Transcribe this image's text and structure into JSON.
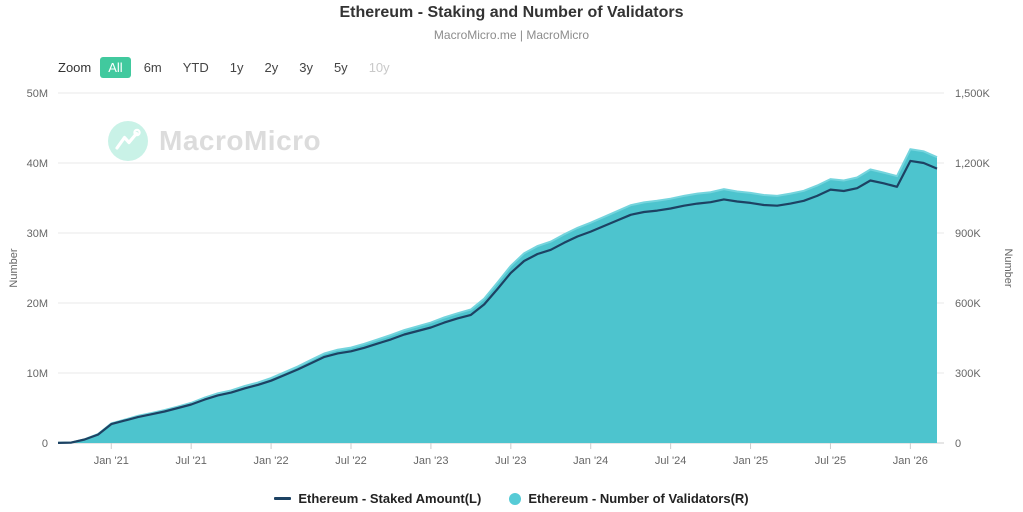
{
  "header": {
    "title": "Ethereum - Staking and Number of Validators",
    "subtitle": "MacroMicro.me | MacroMicro"
  },
  "toolbar": {
    "zoom_label": "Zoom",
    "ranges": [
      {
        "label": "All",
        "state": "active"
      },
      {
        "label": "6m",
        "state": "normal"
      },
      {
        "label": "YTD",
        "state": "normal"
      },
      {
        "label": "1y",
        "state": "normal"
      },
      {
        "label": "2y",
        "state": "normal"
      },
      {
        "label": "3y",
        "state": "normal"
      },
      {
        "label": "5y",
        "state": "normal"
      },
      {
        "label": "10y",
        "state": "disabled"
      }
    ],
    "active_color": "#41c99e"
  },
  "watermark": {
    "text": "MacroMicro",
    "logo": "macromicro-logo",
    "logo_bg": "#c9f2e7",
    "text_color": "#dcdcdc"
  },
  "legend": {
    "items": [
      {
        "label": "Ethereum - Staked Amount(L)",
        "marker": "line",
        "color": "#1d4263"
      },
      {
        "label": "Ethereum - Number of Validators(R)",
        "marker": "circle",
        "color": "#56cbd6"
      }
    ]
  },
  "chart_data": {
    "type": "area",
    "title": "Ethereum - Staking and Number of Validators",
    "x": [
      "2020-09",
      "2020-10",
      "2020-11",
      "2020-12",
      "2021-01",
      "2021-02",
      "2021-03",
      "2021-04",
      "2021-05",
      "2021-06",
      "2021-07",
      "2021-08",
      "2021-09",
      "2021-10",
      "2021-11",
      "2021-12",
      "2022-01",
      "2022-02",
      "2022-03",
      "2022-04",
      "2022-05",
      "2022-06",
      "2022-07",
      "2022-08",
      "2022-09",
      "2022-10",
      "2022-11",
      "2022-12",
      "2023-01",
      "2023-02",
      "2023-03",
      "2023-04",
      "2023-05",
      "2023-06",
      "2023-07",
      "2023-08",
      "2023-09",
      "2023-10",
      "2023-11",
      "2023-12",
      "2024-01",
      "2024-02",
      "2024-03",
      "2024-04",
      "2024-05",
      "2024-06",
      "2024-07",
      "2024-08",
      "2024-09",
      "2024-10",
      "2024-11",
      "2024-12",
      "2025-01",
      "2025-02",
      "2025-03",
      "2025-04",
      "2025-05",
      "2025-06",
      "2025-07",
      "2025-08",
      "2025-09",
      "2025-10",
      "2025-11",
      "2025-12",
      "2026-01",
      "2026-02",
      "2026-03"
    ],
    "x_ticks": [
      {
        "label": "Jan '21",
        "month": "2021-01"
      },
      {
        "label": "Jul '21",
        "month": "2021-07"
      },
      {
        "label": "Jan '22",
        "month": "2022-01"
      },
      {
        "label": "Jul '22",
        "month": "2022-07"
      },
      {
        "label": "Jan '23",
        "month": "2023-01"
      },
      {
        "label": "Jul '23",
        "month": "2023-07"
      },
      {
        "label": "Jan '24",
        "month": "2024-01"
      },
      {
        "label": "Jul '24",
        "month": "2024-07"
      },
      {
        "label": "Jan '25",
        "month": "2025-01"
      },
      {
        "label": "Jul '25",
        "month": "2025-07"
      },
      {
        "label": "Jan '26",
        "month": "2026-01"
      }
    ],
    "left_axis": {
      "title": "Number",
      "min": 0,
      "max": 50,
      "unit": "M",
      "ticks": [
        "0",
        "10M",
        "20M",
        "30M",
        "40M",
        "50M"
      ]
    },
    "right_axis": {
      "title": "Number",
      "min": 0,
      "max": 1500,
      "unit": "K",
      "ticks": [
        "0",
        "300K",
        "600K",
        "900K",
        "1,200K",
        "1,500K"
      ]
    },
    "series": [
      {
        "name": "Ethereum - Staked Amount(L)",
        "axis": "left",
        "kind": "line",
        "color": "#1d4263",
        "values": [
          0.02,
          0.06,
          0.5,
          1.2,
          2.7,
          3.2,
          3.7,
          4.1,
          4.5,
          5.0,
          5.5,
          6.2,
          6.8,
          7.2,
          7.8,
          8.3,
          8.9,
          9.7,
          10.5,
          11.4,
          12.3,
          12.8,
          13.1,
          13.6,
          14.2,
          14.8,
          15.5,
          16.0,
          16.5,
          17.2,
          17.8,
          18.3,
          19.8,
          22.0,
          24.3,
          26.0,
          27.0,
          27.6,
          28.6,
          29.5,
          30.2,
          31.0,
          31.8,
          32.6,
          33.0,
          33.2,
          33.5,
          33.9,
          34.2,
          34.4,
          34.8,
          34.5,
          34.3,
          34.0,
          33.9,
          34.2,
          34.6,
          35.3,
          36.2,
          36.0,
          36.4,
          37.5,
          37.1,
          36.6,
          40.3,
          40.0,
          39.2
        ]
      },
      {
        "name": "Ethereum - Number of Validators(R)",
        "axis": "right",
        "kind": "area",
        "color": "#4dc4ce",
        "edge_color": "#74d4dd",
        "values": [
          1,
          2,
          16,
          38,
          84,
          100,
          116,
          128,
          141,
          156,
          172,
          194,
          213,
          225,
          244,
          259,
          278,
          303,
          328,
          356,
          384,
          400,
          409,
          425,
          444,
          463,
          484,
          500,
          516,
          538,
          556,
          572,
          619,
          688,
          759,
          813,
          844,
          863,
          894,
          922,
          944,
          969,
          994,
          1019,
          1031,
          1038,
          1047,
          1059,
          1069,
          1075,
          1088,
          1078,
          1072,
          1063,
          1059,
          1069,
          1081,
          1103,
          1131,
          1125,
          1138,
          1172,
          1159,
          1144,
          1259,
          1250,
          1225
        ]
      }
    ],
    "grid_color": "#e8e8e8",
    "axis_line_color": "#cccccc",
    "label_color": "#666666",
    "legend_position": "bottom"
  }
}
